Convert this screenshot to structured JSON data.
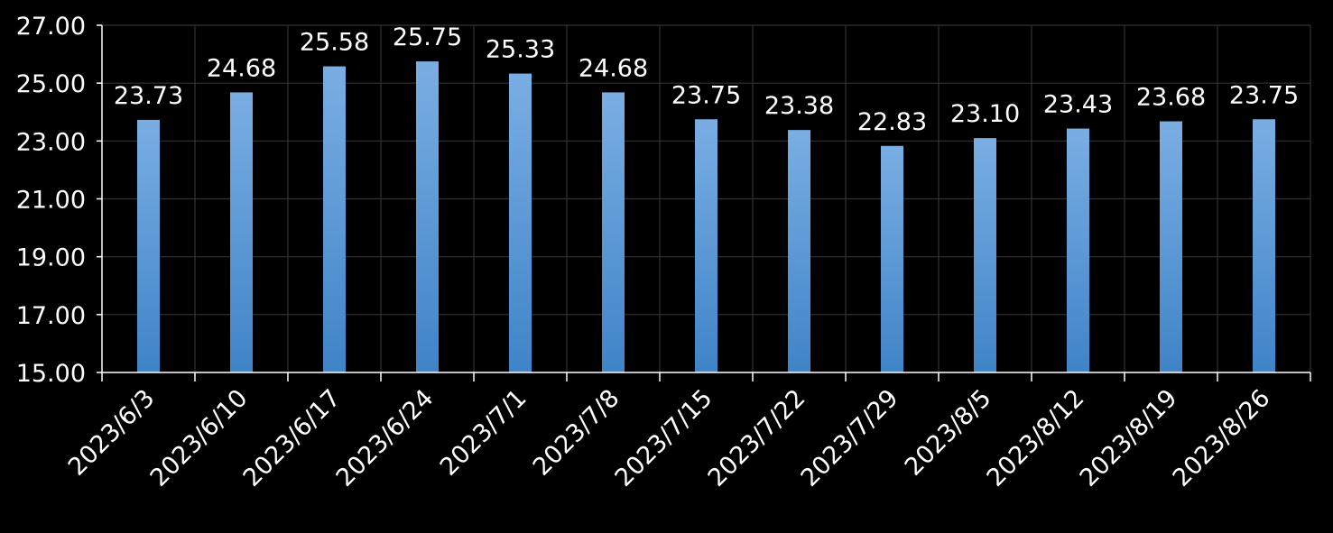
{
  "chart_data": {
    "type": "bar",
    "categories": [
      "2023/6/3",
      "2023/6/10",
      "2023/6/17",
      "2023/6/24",
      "2023/7/1",
      "2023/7/8",
      "2023/7/15",
      "2023/7/22",
      "2023/7/29",
      "2023/8/5",
      "2023/8/12",
      "2023/8/19",
      "2023/8/26"
    ],
    "values": [
      23.73,
      24.68,
      25.58,
      25.75,
      25.33,
      24.68,
      23.75,
      23.38,
      22.83,
      23.1,
      23.43,
      23.68,
      23.75
    ],
    "data_labels": [
      "23.73",
      "24.68",
      "25.58",
      "25.75",
      "25.33",
      "24.68",
      "23.75",
      "23.38",
      "22.83",
      "23.10",
      "23.43",
      "23.68",
      "23.75"
    ],
    "y_ticks": [
      "15.00",
      "17.00",
      "19.00",
      "21.00",
      "23.00",
      "25.00",
      "27.00"
    ],
    "ylim": [
      15,
      27
    ],
    "title": "",
    "xlabel": "",
    "ylabel": "",
    "grid": true,
    "colors": {
      "background": "#000000",
      "bar_top": "#7aaee3",
      "bar_bottom": "#3f84c8",
      "grid": "#333333",
      "axis": "#ffffff",
      "text": "#ffffff"
    }
  }
}
